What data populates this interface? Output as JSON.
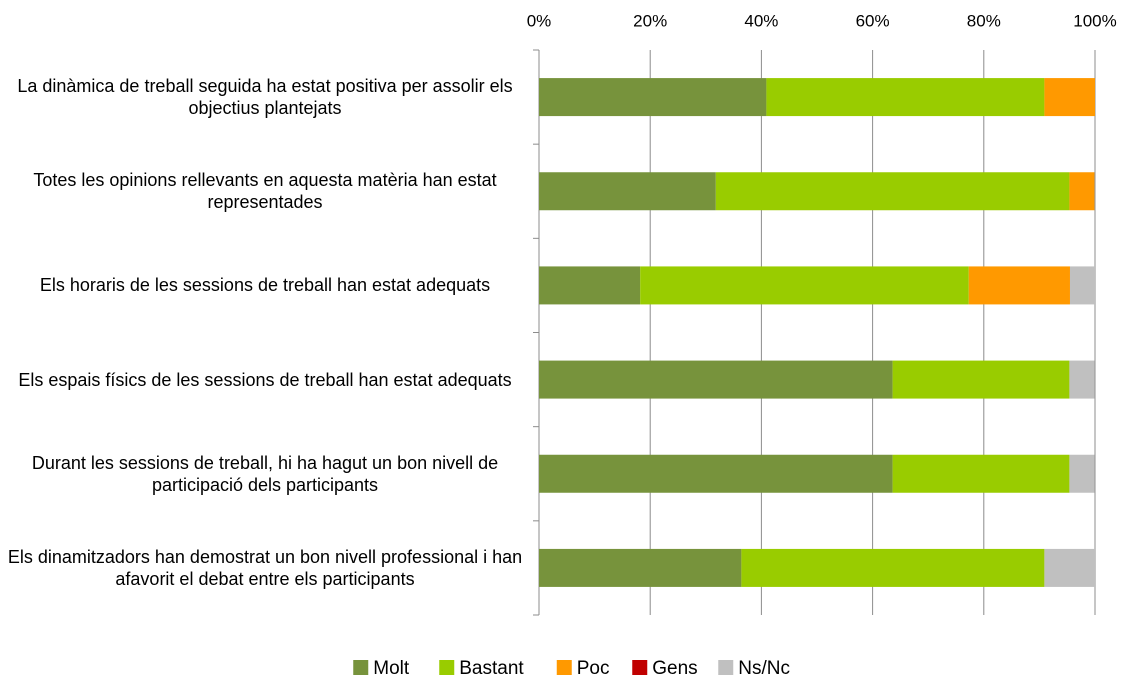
{
  "chart_data": {
    "type": "stacked_barh",
    "categories": [
      "La dinàmica de treball seguida ha estat positiva per assolir els objectius plantejats",
      "Totes les opinions rellevants en aquesta matèria han estat representades",
      "Els horaris de les sessions de treball han estat adequats",
      "Els espais físics de les sessions de treball han estat adequats",
      "Durant les sessions de treball, hi ha hagut un bon nivell de participació dels participants",
      "Els dinamitzadors han demostrat un bon nivell professional i han afavorit el debat entre els participants"
    ],
    "series": [
      {
        "name": "Molt",
        "color": "#77933c",
        "values": [
          40.9,
          31.8,
          18.2,
          63.6,
          63.6,
          36.4
        ]
      },
      {
        "name": "Bastant",
        "color": "#99cc00",
        "values": [
          50.0,
          63.6,
          59.1,
          31.8,
          31.8,
          54.5
        ]
      },
      {
        "name": "Poc",
        "color": "#ff9900",
        "values": [
          9.1,
          4.5,
          18.2,
          0,
          0,
          0
        ]
      },
      {
        "name": "Gens",
        "color": "#c00000",
        "values": [
          0,
          0,
          0,
          0,
          0,
          0
        ]
      },
      {
        "name": "Ns/Nc",
        "color": "#c0c0c0",
        "values": [
          0,
          0,
          4.5,
          4.5,
          4.5,
          9.1
        ]
      }
    ],
    "xlim": [
      0,
      100
    ],
    "xticks": [
      {
        "value": 0,
        "label": "0%"
      },
      {
        "value": 20,
        "label": "20%"
      },
      {
        "value": 40,
        "label": "40%"
      },
      {
        "value": 60,
        "label": "60%"
      },
      {
        "value": 80,
        "label": "80%"
      },
      {
        "value": 100,
        "label": "100%"
      }
    ],
    "grid": true,
    "legend": "bottom"
  }
}
